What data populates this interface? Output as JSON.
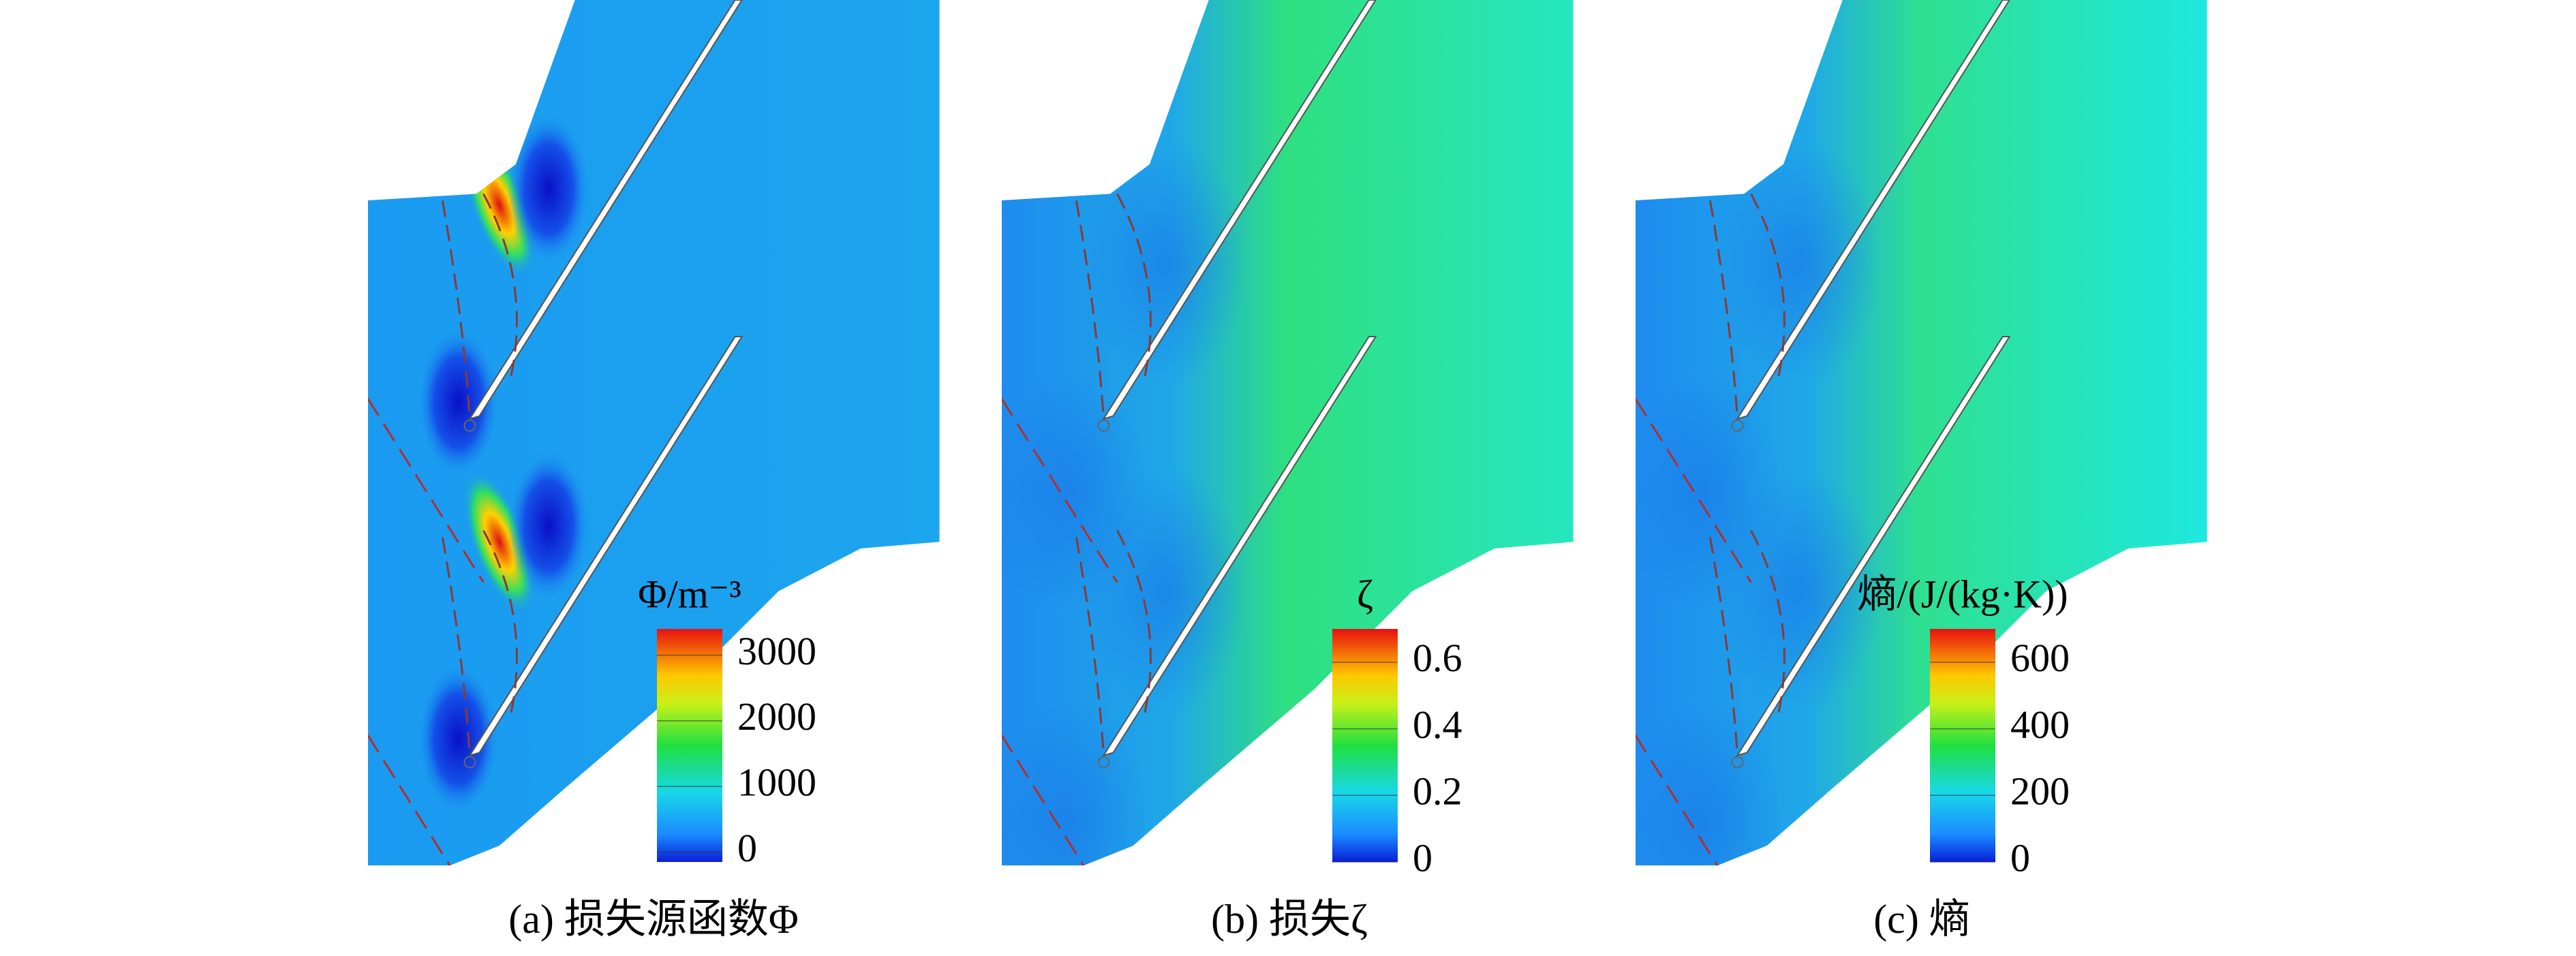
{
  "chart_data": [
    {
      "type": "contour",
      "caption": "(a) 损失源函数Φ",
      "colorbar_label": "Φ/m⁻³",
      "clim": [
        -150,
        3400
      ],
      "cticks": [
        0,
        1000,
        2000,
        3000
      ]
    },
    {
      "type": "contour",
      "caption": "(b) 损失ζ",
      "colorbar_label": "ζ",
      "clim": [
        0,
        0.7
      ],
      "cticks": [
        0,
        0.2,
        0.4,
        0.6
      ]
    },
    {
      "type": "contour",
      "caption": "(c) 熵",
      "colorbar_label": "熵/(J/(kg·K))",
      "clim": [
        0,
        700
      ],
      "cticks": [
        0,
        200,
        400,
        600
      ]
    }
  ]
}
